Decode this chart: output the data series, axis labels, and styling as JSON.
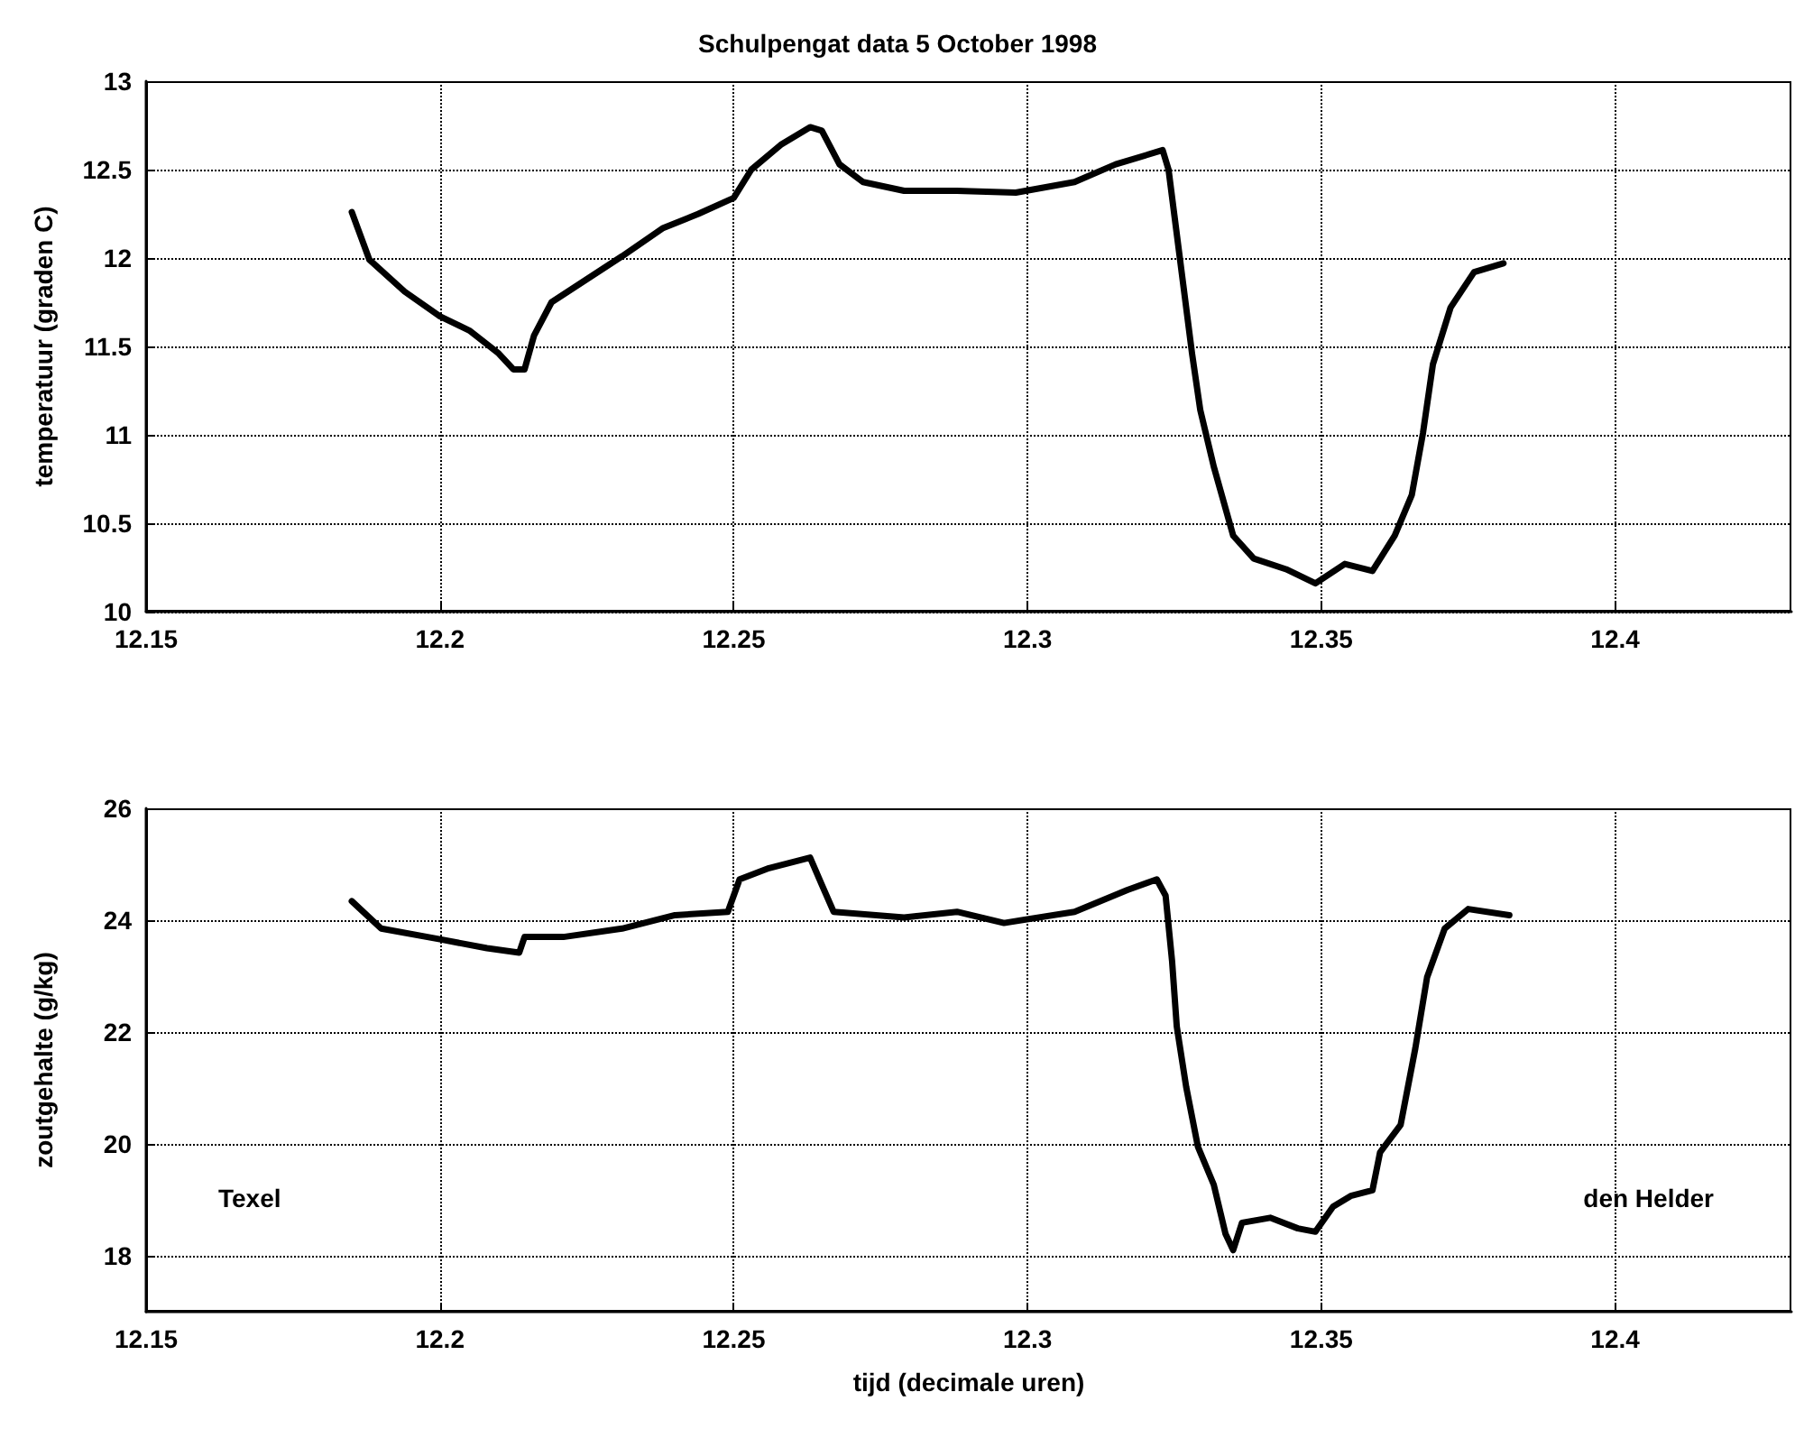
{
  "chart_data": [
    {
      "type": "line",
      "title": "Schulpengat data 5 October 1998",
      "ylabel": "temperatuur (graden C)",
      "xlim": [
        12.15,
        12.43
      ],
      "xticks": [
        12.15,
        12.2,
        12.25,
        12.3,
        12.35,
        12.4
      ],
      "ylim": [
        10,
        13
      ],
      "yticks": [
        10,
        10.5,
        11,
        11.5,
        12,
        12.5,
        13
      ],
      "grid": true,
      "series": [
        {
          "color": "#000000",
          "x": [
            12.185,
            12.186,
            12.188,
            12.194,
            12.2,
            12.205,
            12.21,
            12.2125,
            12.2144,
            12.216,
            12.219,
            12.225,
            12.231,
            12.238,
            12.244,
            12.25,
            12.253,
            12.258,
            12.263,
            12.265,
            12.268,
            12.272,
            12.279,
            12.288,
            12.298,
            12.308,
            12.315,
            12.323,
            12.324,
            12.325,
            12.3265,
            12.328,
            12.3294,
            12.3317,
            12.335,
            12.3385,
            12.344,
            12.349,
            12.354,
            12.3587,
            12.3625,
            12.3654,
            12.3673,
            12.369,
            12.372,
            12.376,
            12.381
          ],
          "values": [
            12.26,
            12.17,
            11.99,
            11.81,
            11.67,
            11.59,
            11.46,
            11.37,
            11.37,
            11.56,
            11.75,
            11.88,
            12.01,
            12.17,
            12.25,
            12.34,
            12.5,
            12.64,
            12.74,
            12.72,
            12.53,
            12.43,
            12.38,
            12.38,
            12.37,
            12.43,
            12.53,
            12.61,
            12.5,
            12.24,
            11.85,
            11.46,
            11.14,
            10.82,
            10.43,
            10.3,
            10.24,
            10.16,
            10.27,
            10.23,
            10.43,
            10.66,
            11.01,
            11.4,
            11.72,
            11.92,
            11.97
          ]
        }
      ]
    },
    {
      "type": "line",
      "xlabel": "tijd (decimale uren)",
      "ylabel": "zoutgehalte (g/kg)",
      "xlim": [
        12.15,
        12.43
      ],
      "xticks": [
        12.15,
        12.2,
        12.25,
        12.3,
        12.35,
        12.4
      ],
      "ylim": [
        17,
        26
      ],
      "yticks": [
        18,
        20,
        22,
        24,
        26
      ],
      "grid": true,
      "annotations": [
        "Texel",
        "den Helder"
      ],
      "series": [
        {
          "color": "#000000",
          "x": [
            12.185,
            12.19,
            12.2,
            12.208,
            12.2135,
            12.2144,
            12.221,
            12.231,
            12.24,
            12.249,
            12.251,
            12.256,
            12.263,
            12.265,
            12.267,
            12.279,
            12.288,
            12.296,
            12.308,
            12.317,
            12.322,
            12.3235,
            12.3246,
            12.3254,
            12.327,
            12.329,
            12.3317,
            12.3337,
            12.335,
            12.3365,
            12.3413,
            12.346,
            12.349,
            12.352,
            12.355,
            12.3587,
            12.36,
            12.3635,
            12.366,
            12.368,
            12.371,
            12.375,
            12.382
          ],
          "values": [
            24.34,
            23.85,
            23.66,
            23.5,
            23.42,
            23.7,
            23.7,
            23.85,
            24.09,
            24.15,
            24.73,
            24.93,
            25.12,
            24.63,
            24.15,
            24.05,
            24.15,
            23.95,
            24.15,
            24.54,
            24.73,
            24.44,
            23.27,
            22.1,
            21.02,
            19.95,
            19.27,
            18.39,
            18.1,
            18.59,
            18.68,
            18.49,
            18.43,
            18.88,
            19.07,
            19.17,
            19.85,
            20.34,
            21.71,
            22.98,
            23.85,
            24.2,
            24.09
          ]
        }
      ]
    }
  ]
}
